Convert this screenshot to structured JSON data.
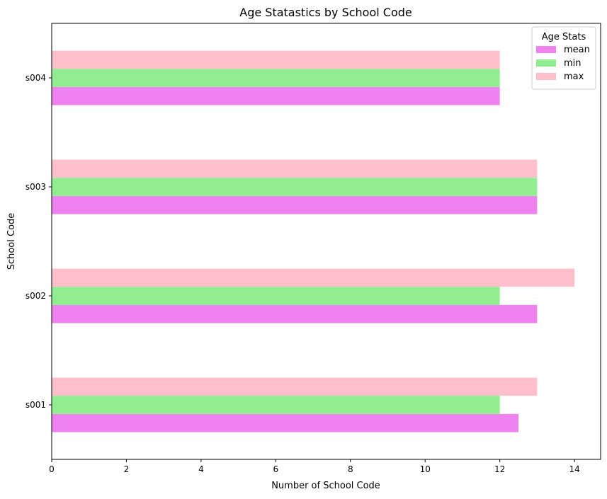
{
  "chart_data": {
    "type": "bar",
    "orientation": "horizontal",
    "title": "Age Statastics by School Code",
    "xlabel": "Number of School Code",
    "ylabel": "School Code",
    "categories": [
      "s001",
      "s002",
      "s003",
      "s004"
    ],
    "series": [
      {
        "name": "mean",
        "color": "#ee82ee",
        "values": [
          12.5,
          13,
          13,
          12
        ]
      },
      {
        "name": "min",
        "color": "#90ee90",
        "values": [
          12,
          12,
          13,
          12
        ]
      },
      {
        "name": "max",
        "color": "#ffc0cb",
        "values": [
          13,
          14,
          13,
          12
        ]
      }
    ],
    "xlim": [
      0,
      14.7
    ],
    "xticks": [
      "0",
      "2",
      "4",
      "6",
      "8",
      "10",
      "12",
      "14"
    ],
    "grid": false,
    "legend": {
      "title": "Age Stats",
      "placement": "top-right"
    }
  }
}
